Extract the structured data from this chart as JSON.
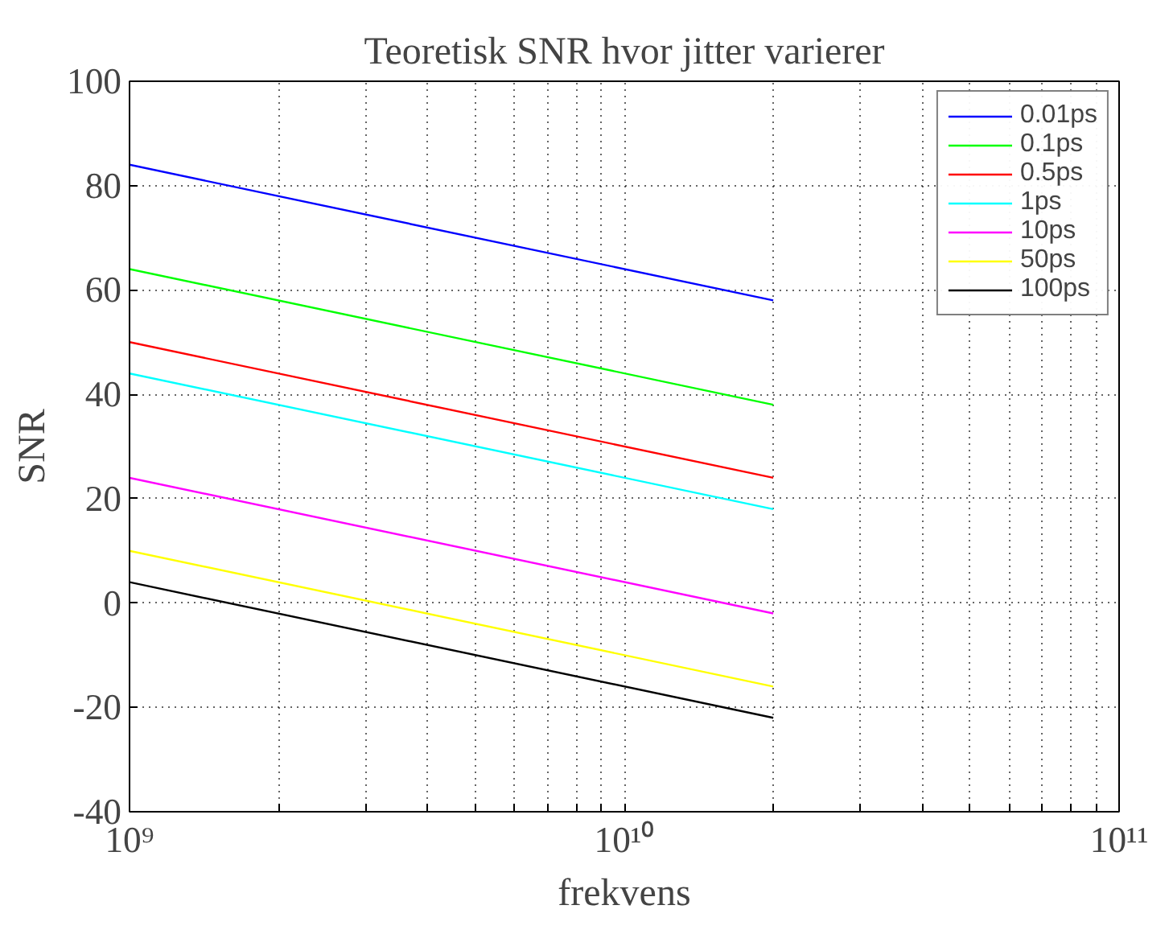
{
  "chart_data": {
    "type": "line",
    "title": "Teoretisk SNR hvor jitter varierer",
    "xlabel": "frekvens",
    "ylabel": "SNR",
    "log": "x",
    "grid": true,
    "legend": "top right",
    "line_style": "solid",
    "marker": "none",
    "x": [
      1000000000.0,
      20000000000.0
    ],
    "series": [
      {
        "name": "0.01ps",
        "color": "#0000ff",
        "values": [
          84,
          58
        ]
      },
      {
        "name": "0.1ps",
        "color": "#00ff00",
        "values": [
          64,
          38
        ]
      },
      {
        "name": "0.5ps",
        "color": "#ff0000",
        "values": [
          50,
          24
        ]
      },
      {
        "name": "1ps",
        "color": "#00ffff",
        "values": [
          44,
          18
        ]
      },
      {
        "name": "10ps",
        "color": "#ff00ff",
        "values": [
          24,
          -2
        ]
      },
      {
        "name": "50ps",
        "color": "#ffff00",
        "values": [
          10,
          -16
        ]
      },
      {
        "name": "100ps",
        "color": "#000000",
        "values": [
          4,
          -22
        ]
      }
    ],
    "xlim": [
      1000000000.0,
      100000000000.0
    ],
    "ylim": [
      -40,
      100
    ],
    "xticks": [
      {
        "value": 1000000000.0,
        "label": "10⁹"
      },
      {
        "value": 2000000000.0,
        "label": null
      },
      {
        "value": 3000000000.0,
        "label": null
      },
      {
        "value": 4000000000.0,
        "label": null
      },
      {
        "value": 5000000000.0,
        "label": null
      },
      {
        "value": 6000000000.0,
        "label": null
      },
      {
        "value": 7000000000.0,
        "label": null
      },
      {
        "value": 8000000000.0,
        "label": null
      },
      {
        "value": 9000000000.0,
        "label": null
      },
      {
        "value": 10000000000.0,
        "label": "10¹⁰"
      },
      {
        "value": 20000000000.0,
        "label": null
      },
      {
        "value": 30000000000.0,
        "label": null
      },
      {
        "value": 40000000000.0,
        "label": null
      },
      {
        "value": 50000000000.0,
        "label": null
      },
      {
        "value": 60000000000.0,
        "label": null
      },
      {
        "value": 70000000000.0,
        "label": null
      },
      {
        "value": 80000000000.0,
        "label": null
      },
      {
        "value": 90000000000.0,
        "label": null
      },
      {
        "value": 100000000000.0,
        "label": "10¹¹"
      }
    ],
    "yticks": [
      -40,
      -20,
      0,
      20,
      40,
      60,
      80,
      100
    ]
  }
}
